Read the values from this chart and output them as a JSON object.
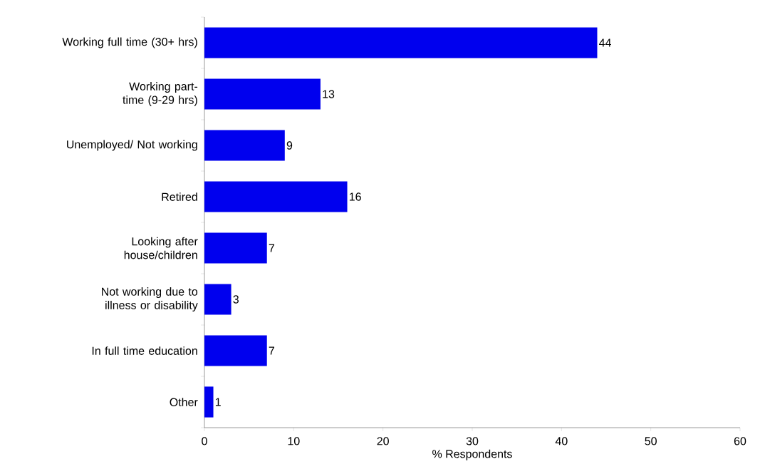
{
  "chart_data": {
    "type": "bar",
    "orientation": "horizontal",
    "categories": [
      "Working full time (30+ hrs)",
      "Working part-time (9-29 hrs)",
      "Unemployed/ Not working",
      "Retired",
      "Looking after house/children",
      "Not working due to illness or disability",
      "In full time education",
      "Other"
    ],
    "values": [
      44,
      13,
      9,
      16,
      7,
      3,
      7,
      1
    ],
    "color": "#0000ee",
    "xlabel": "% Respondents",
    "xlim": [
      0,
      60
    ],
    "xticks": [
      0,
      10,
      20,
      30,
      40,
      50,
      60
    ],
    "data_labels": true,
    "grid": false
  }
}
